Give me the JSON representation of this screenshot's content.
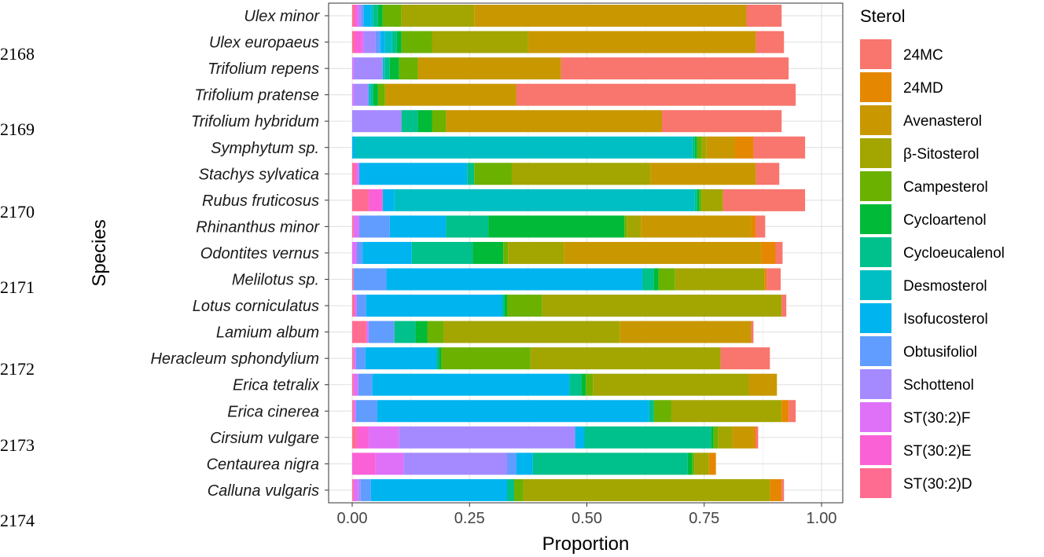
{
  "line_numbers": [
    "2168",
    "2169",
    "2170",
    "2171",
    "2172",
    "2173",
    "2174"
  ],
  "chart_data": {
    "type": "bar",
    "orientation": "horizontal",
    "stacked": true,
    "title": "",
    "xlabel": "Proportion",
    "ylabel": "Species",
    "xlim": [
      0,
      1
    ],
    "x_ticks": [
      0.0,
      0.25,
      0.5,
      0.75,
      1.0
    ],
    "x_tick_labels": [
      "0.00",
      "0.25",
      "0.50",
      "0.75",
      "1.00"
    ],
    "grid": true,
    "legend_title": "Sterol",
    "legend_position": "right",
    "sterols": [
      {
        "name": "24MC",
        "color": "#F8766D"
      },
      {
        "name": "24MD",
        "color": "#E58700"
      },
      {
        "name": "Avenasterol",
        "color": "#C99800"
      },
      {
        "name": "β-Sitosterol",
        "color": "#A3A500"
      },
      {
        "name": "Campesterol",
        "color": "#6BB100"
      },
      {
        "name": "Cycloartenol",
        "color": "#00BA38"
      },
      {
        "name": "Cycloeucalenol",
        "color": "#00C08B"
      },
      {
        "name": "Desmosterol",
        "color": "#00BFC4"
      },
      {
        "name": "Isofucosterol",
        "color": "#00B4F0"
      },
      {
        "name": "Obtusifoliol",
        "color": "#619CFF"
      },
      {
        "name": "Schottenol",
        "color": "#A58AFF"
      },
      {
        "name": "ST(30:2)F",
        "color": "#DF70F8"
      },
      {
        "name": "ST(30:2)E",
        "color": "#FB61D7"
      },
      {
        "name": "ST(30:2)D",
        "color": "#FF6C91"
      }
    ],
    "stack_order_left_to_right": [
      "ST(30:2)D",
      "ST(30:2)E",
      "ST(30:2)F",
      "Schottenol",
      "Obtusifoliol",
      "Isofucosterol",
      "Desmosterol",
      "Cycloeucalenol",
      "Cycloartenol",
      "Campesterol",
      "β-Sitosterol",
      "Avenasterol",
      "24MD",
      "24MC"
    ],
    "species": [
      {
        "name": "Ulex minor",
        "values": {
          "ST(30:2)D": 0.005,
          "ST(30:2)E": 0.005,
          "ST(30:2)F": 0.005,
          "Schottenol": 0.005,
          "Obtusifoliol": 0.005,
          "Isofucosterol": 0.015,
          "Desmosterol": 0.005,
          "Cycloeucalenol": 0.01,
          "Cycloartenol": 0.01,
          "Campesterol": 0.04,
          "β-Sitosterol": 0.155,
          "Avenasterol": 0.58,
          "24MD": 0.0,
          "24MC": 0.075
        }
      },
      {
        "name": "Ulex europaeus",
        "values": {
          "ST(30:2)D": 0.005,
          "ST(30:2)E": 0.015,
          "ST(30:2)F": 0.005,
          "Schottenol": 0.025,
          "Obtusifoliol": 0.01,
          "Isofucosterol": 0.01,
          "Desmosterol": 0.015,
          "Cycloeucalenol": 0.01,
          "Cycloartenol": 0.01,
          "Campesterol": 0.065,
          "β-Sitosterol": 0.205,
          "Avenasterol": 0.485,
          "24MD": 0.0,
          "24MC": 0.06
        }
      },
      {
        "name": "Trifolium repens",
        "values": {
          "ST(30:2)D": 0.0,
          "ST(30:2)E": 0.0,
          "ST(30:2)F": 0.003,
          "Schottenol": 0.062,
          "Obtusifoliol": 0.0,
          "Isofucosterol": 0.0,
          "Desmosterol": 0.005,
          "Cycloeucalenol": 0.01,
          "Cycloartenol": 0.02,
          "Campesterol": 0.04,
          "β-Sitosterol": 0.0,
          "Avenasterol": 0.305,
          "24MD": 0.0,
          "24MC": 0.485
        }
      },
      {
        "name": "Trifolium pratense",
        "values": {
          "ST(30:2)D": 0.0,
          "ST(30:2)E": 0.0,
          "ST(30:2)F": 0.003,
          "Schottenol": 0.032,
          "Obtusifoliol": 0.0,
          "Isofucosterol": 0.0,
          "Desmosterol": 0.005,
          "Cycloeucalenol": 0.005,
          "Cycloartenol": 0.01,
          "Campesterol": 0.015,
          "β-Sitosterol": 0.0,
          "Avenasterol": 0.28,
          "24MD": 0.0,
          "24MC": 0.595
        }
      },
      {
        "name": "Trifolium hybridum",
        "values": {
          "ST(30:2)D": 0.0,
          "ST(30:2)E": 0.0,
          "ST(30:2)F": 0.0,
          "Schottenol": 0.105,
          "Obtusifoliol": 0.0,
          "Isofucosterol": 0.0,
          "Desmosterol": 0.0,
          "Cycloeucalenol": 0.035,
          "Cycloartenol": 0.03,
          "Campesterol": 0.03,
          "β-Sitosterol": 0.0,
          "Avenasterol": 0.46,
          "24MD": 0.0,
          "24MC": 0.255
        }
      },
      {
        "name": "Symphytum sp.",
        "values": {
          "ST(30:2)D": 0.0,
          "ST(30:2)E": 0.0,
          "ST(30:2)F": 0.0,
          "Schottenol": 0.0,
          "Obtusifoliol": 0.0,
          "Isofucosterol": 0.005,
          "Desmosterol": 0.72,
          "Cycloeucalenol": 0.005,
          "Cycloartenol": 0.005,
          "Campesterol": 0.01,
          "β-Sitosterol": 0.01,
          "Avenasterol": 0.06,
          "24MD": 0.04,
          "24MC": 0.11
        }
      },
      {
        "name": "Stachys sylvatica",
        "values": {
          "ST(30:2)D": 0.005,
          "ST(30:2)E": 0.005,
          "ST(30:2)F": 0.005,
          "Schottenol": 0.0,
          "Obtusifoliol": 0.0,
          "Isofucosterol": 0.23,
          "Desmosterol": 0.0,
          "Cycloeucalenol": 0.015,
          "Cycloartenol": 0.0,
          "Campesterol": 0.08,
          "β-Sitosterol": 0.295,
          "Avenasterol": 0.225,
          "24MD": 0.0,
          "24MC": 0.05
        }
      },
      {
        "name": "Rubus fruticosus",
        "values": {
          "ST(30:2)D": 0.035,
          "ST(30:2)E": 0.03,
          "ST(30:2)F": 0.0,
          "Schottenol": 0.0,
          "Obtusifoliol": 0.0,
          "Isofucosterol": 0.025,
          "Desmosterol": 0.64,
          "Cycloeucalenol": 0.005,
          "Cycloartenol": 0.005,
          "Campesterol": 0.005,
          "β-Sitosterol": 0.045,
          "Avenasterol": 0.0,
          "24MD": 0.0,
          "24MC": 0.175
        }
      },
      {
        "name": "Rhinanthus minor",
        "values": {
          "ST(30:2)D": 0.003,
          "ST(30:2)E": 0.0,
          "ST(30:2)F": 0.012,
          "Schottenol": 0.0,
          "Obtusifoliol": 0.065,
          "Isofucosterol": 0.12,
          "Desmosterol": 0.0,
          "Cycloeucalenol": 0.09,
          "Cycloartenol": 0.29,
          "Campesterol": 0.005,
          "β-Sitosterol": 0.03,
          "Avenasterol": 0.235,
          "24MD": 0.01,
          "24MC": 0.02
        }
      },
      {
        "name": "Odontites vernus",
        "values": {
          "ST(30:2)D": 0.0,
          "ST(30:2)E": 0.0,
          "ST(30:2)F": 0.01,
          "Schottenol": 0.0,
          "Obtusifoliol": 0.012,
          "Isofucosterol": 0.105,
          "Desmosterol": 0.0,
          "Cycloeucalenol": 0.13,
          "Cycloartenol": 0.065,
          "Campesterol": 0.01,
          "β-Sitosterol": 0.12,
          "Avenasterol": 0.42,
          "24MD": 0.03,
          "24MC": 0.015
        }
      },
      {
        "name": "Melilotus sp.",
        "values": {
          "ST(30:2)D": 0.003,
          "ST(30:2)E": 0.0,
          "ST(30:2)F": 0.0,
          "Schottenol": 0.0,
          "Obtusifoliol": 0.07,
          "Isofucosterol": 0.545,
          "Desmosterol": 0.0,
          "Cycloeucalenol": 0.025,
          "Cycloartenol": 0.01,
          "Campesterol": 0.035,
          "β-Sitosterol": 0.19,
          "Avenasterol": 0.0,
          "24MD": 0.005,
          "24MC": 0.03
        }
      },
      {
        "name": "Lotus corniculatus",
        "values": {
          "ST(30:2)D": 0.005,
          "ST(30:2)E": 0.0,
          "ST(30:2)F": 0.005,
          "Schottenol": 0.0,
          "Obtusifoliol": 0.02,
          "Isofucosterol": 0.29,
          "Desmosterol": 0.0,
          "Cycloeucalenol": 0.005,
          "Cycloartenol": 0.005,
          "Campesterol": 0.075,
          "β-Sitosterol": 0.51,
          "Avenasterol": 0.0,
          "24MD": 0.0,
          "24MC": 0.01
        }
      },
      {
        "name": "Lamium album",
        "values": {
          "ST(30:2)D": 0.03,
          "ST(30:2)E": 0.0,
          "ST(30:2)F": 0.005,
          "Schottenol": 0.0,
          "Obtusifoliol": 0.055,
          "Isofucosterol": 0.0,
          "Desmosterol": 0.0,
          "Cycloeucalenol": 0.045,
          "Cycloartenol": 0.025,
          "Campesterol": 0.035,
          "β-Sitosterol": 0.375,
          "Avenasterol": 0.28,
          "24MD": 0.0,
          "24MC": 0.005
        }
      },
      {
        "name": "Heracleum sphondylium",
        "values": {
          "ST(30:2)D": 0.003,
          "ST(30:2)E": 0.0,
          "ST(30:2)F": 0.005,
          "Schottenol": 0.0,
          "Obtusifoliol": 0.02,
          "Isofucosterol": 0.152,
          "Desmosterol": 0.0,
          "Cycloeucalenol": 0.005,
          "Cycloartenol": 0.005,
          "Campesterol": 0.19,
          "β-Sitosterol": 0.405,
          "Avenasterol": 0.0,
          "24MD": 0.0,
          "24MC": 0.105
        }
      },
      {
        "name": "Erica tetralix",
        "values": {
          "ST(30:2)D": 0.003,
          "ST(30:2)E": 0.0,
          "ST(30:2)F": 0.01,
          "Schottenol": 0.0,
          "Obtusifoliol": 0.03,
          "Isofucosterol": 0.42,
          "Desmosterol": 0.0,
          "Cycloeucalenol": 0.025,
          "Cycloartenol": 0.01,
          "Campesterol": 0.015,
          "β-Sitosterol": 0.332,
          "Avenasterol": 0.06,
          "24MD": 0.0,
          "24MC": 0.0
        }
      },
      {
        "name": "Erica cinerea",
        "values": {
          "ST(30:2)D": 0.003,
          "ST(30:2)E": 0.0,
          "ST(30:2)F": 0.005,
          "Schottenol": 0.0,
          "Obtusifoliol": 0.045,
          "Isofucosterol": 0.58,
          "Desmosterol": 0.0,
          "Cycloeucalenol": 0.01,
          "Cycloartenol": 0.0,
          "Campesterol": 0.037,
          "β-Sitosterol": 0.235,
          "Avenasterol": 0.0,
          "24MD": 0.015,
          "24MC": 0.015
        }
      },
      {
        "name": "Cirsium vulgare",
        "values": {
          "ST(30:2)D": 0.01,
          "ST(30:2)E": 0.025,
          "ST(30:2)F": 0.065,
          "Schottenol": 0.375,
          "Obtusifoliol": 0.0,
          "Isofucosterol": 0.02,
          "Desmosterol": 0.0,
          "Cycloeucalenol": 0.27,
          "Cycloartenol": 0.005,
          "Campesterol": 0.01,
          "β-Sitosterol": 0.03,
          "Avenasterol": 0.045,
          "24MD": 0.005,
          "24MC": 0.005
        }
      },
      {
        "name": "Centaurea nigra",
        "values": {
          "ST(30:2)D": 0.0,
          "ST(30:2)E": 0.05,
          "ST(30:2)F": 0.06,
          "Schottenol": 0.22,
          "Obtusifoliol": 0.02,
          "Isofucosterol": 0.035,
          "Desmosterol": 0.0,
          "Cycloeucalenol": 0.33,
          "Cycloartenol": 0.01,
          "Campesterol": 0.005,
          "β-Sitosterol": 0.03,
          "Avenasterol": 0.0,
          "24MD": 0.015,
          "24MC": 0.0
        }
      },
      {
        "name": "Calluna vulgaris",
        "values": {
          "ST(30:2)D": 0.003,
          "ST(30:2)E": 0.0,
          "ST(30:2)F": 0.01,
          "Schottenol": 0.005,
          "Obtusifoliol": 0.022,
          "Isofucosterol": 0.29,
          "Desmosterol": 0.0,
          "Cycloeucalenol": 0.015,
          "Cycloartenol": 0.0,
          "Campesterol": 0.02,
          "β-Sitosterol": 0.525,
          "Avenasterol": 0.0,
          "24MD": 0.025,
          "24MC": 0.005
        }
      }
    ]
  }
}
